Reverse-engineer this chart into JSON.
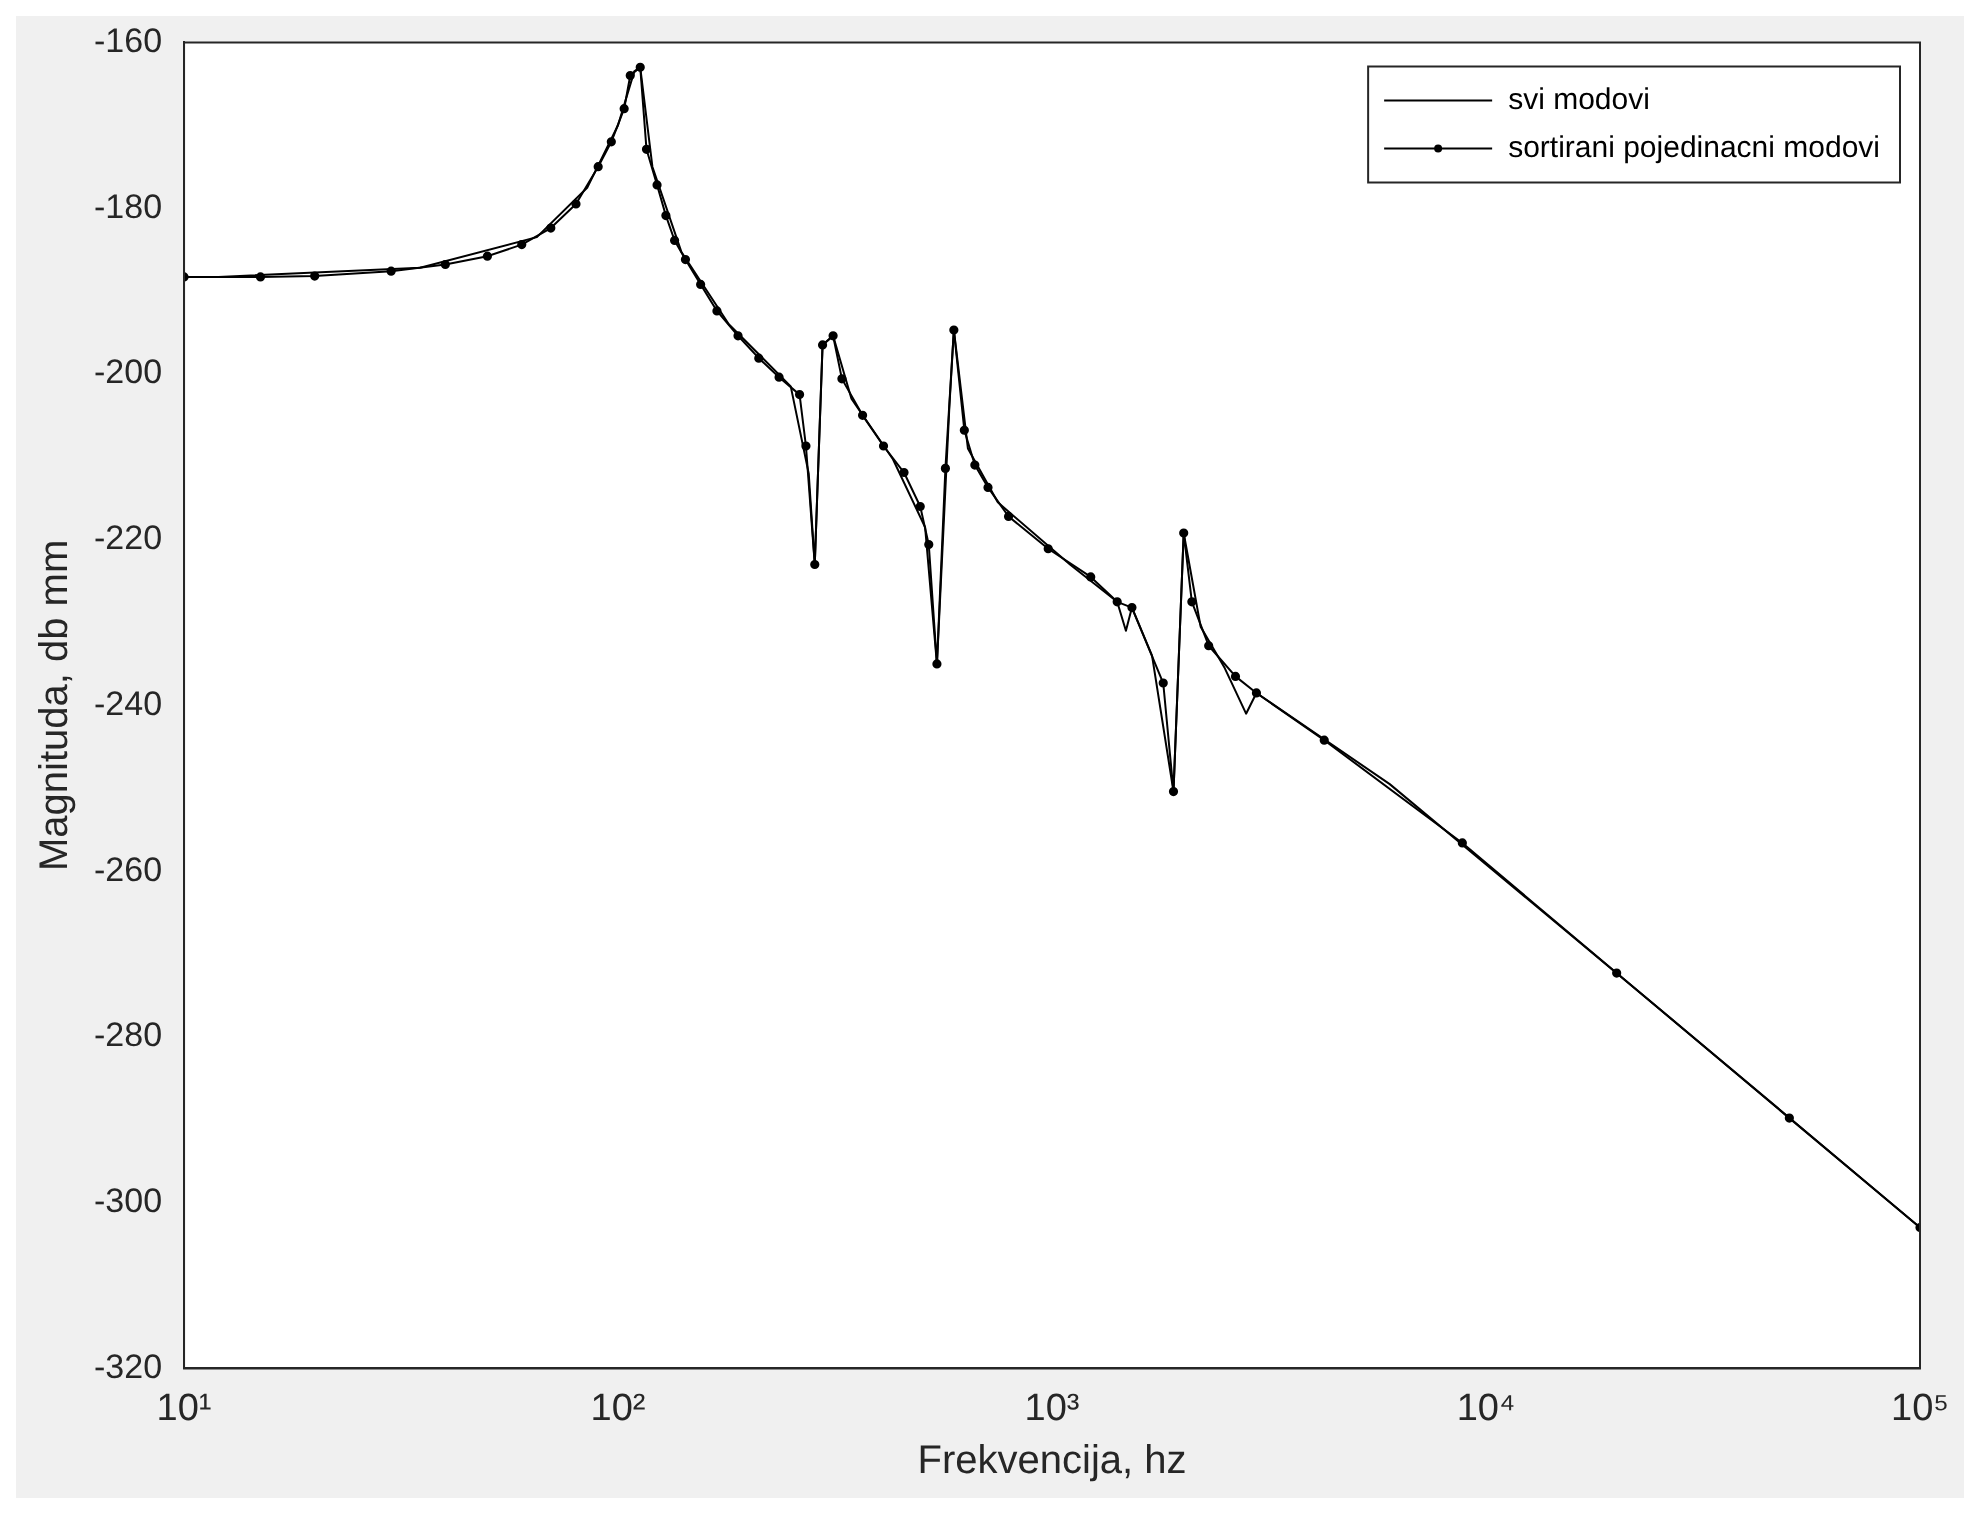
{
  "chart_data": {
    "type": "line",
    "xlabel": "Frekvencija, hz",
    "ylabel": "Magnituda, db mm",
    "log": "x",
    "xlim": [
      10,
      100000
    ],
    "ylim": [
      -320,
      -160
    ],
    "xticks": [
      {
        "value": 10,
        "label": "10¹"
      },
      {
        "value": 100,
        "label": "10²"
      },
      {
        "value": 1000,
        "label": "10³"
      },
      {
        "value": 10000,
        "label": "10⁴"
      },
      {
        "value": 100000,
        "label": "10⁵"
      }
    ],
    "yticks": [
      -320,
      -300,
      -280,
      -260,
      -240,
      -220,
      -200,
      -180,
      -160
    ],
    "grid": false,
    "legend": "top right",
    "series": [
      {
        "name": "svi modovi",
        "color": "#000000",
        "marker": "none",
        "x": [
          10,
          12,
          35,
          65,
          85,
          100,
          109,
          112.5,
          120,
          140,
          180,
          250,
          275,
          284,
          296,
          313,
          345,
          430,
          510,
          543,
          580,
          594,
          640,
          750,
          1100,
          1413,
          1480,
          1528,
          1700,
          1905,
          2011,
          2200,
          2500,
          2800,
          2958,
          6000,
          30000,
          100000
        ],
        "values": [
          -188.3,
          -188.3,
          -187.2,
          -183.5,
          -177.5,
          -170,
          -163.5,
          -163,
          -175,
          -185.3,
          -194,
          -201.5,
          -212,
          -223,
          -196.5,
          -195.4,
          -203,
          -210.3,
          -218.5,
          -235,
          -204,
          -194.7,
          -209,
          -215.5,
          -223,
          -227.5,
          -231,
          -228.2,
          -234,
          -250.4,
          -219.2,
          -230.5,
          -235.5,
          -241,
          -238.5,
          -249.5,
          -280,
          -303
        ]
      },
      {
        "name": "sortirani pojedinacni modovi",
        "color": "#000000",
        "marker": "circle",
        "x": [
          10,
          15,
          20,
          30,
          40,
          50,
          60,
          70,
          80,
          90,
          96.5,
          103.3,
          106.7,
          112.5,
          116.3,
          123,
          128.9,
          135,
          143,
          155,
          169,
          189,
          211,
          235,
          262,
          271,
          284,
          296,
          313,
          328,
          366,
          409,
          456,
          497,
          520,
          543,
          568,
          594,
          628,
          664,
          712,
          794,
          980,
          1228,
          1413,
          1528,
          1804,
          1905,
          2011,
          2100,
          2296,
          2647,
          2958,
          4239,
          8820,
          20000,
          50000,
          100000
        ],
        "values": [
          -188.3,
          -188.3,
          -188.2,
          -187.6,
          -186.8,
          -185.8,
          -184.4,
          -182.4,
          -179.5,
          -175,
          -172,
          -168,
          -164,
          -163,
          -172.9,
          -177.2,
          -180.9,
          -183.9,
          -186.2,
          -189.2,
          -192.4,
          -195.4,
          -198.1,
          -200.4,
          -202.5,
          -208.7,
          -223,
          -196.5,
          -195.4,
          -200.6,
          -205,
          -208.7,
          -211.9,
          -216,
          -220.6,
          -235,
          -211.4,
          -194.7,
          -206.8,
          -211,
          -213.7,
          -217.2,
          -221.1,
          -224.5,
          -227.5,
          -228.2,
          -237.3,
          -250.4,
          -219.2,
          -227.5,
          -232.8,
          -236.5,
          -238.5,
          -244.2,
          -256.6,
          -272.3,
          -289.8,
          -303
        ]
      }
    ]
  }
}
